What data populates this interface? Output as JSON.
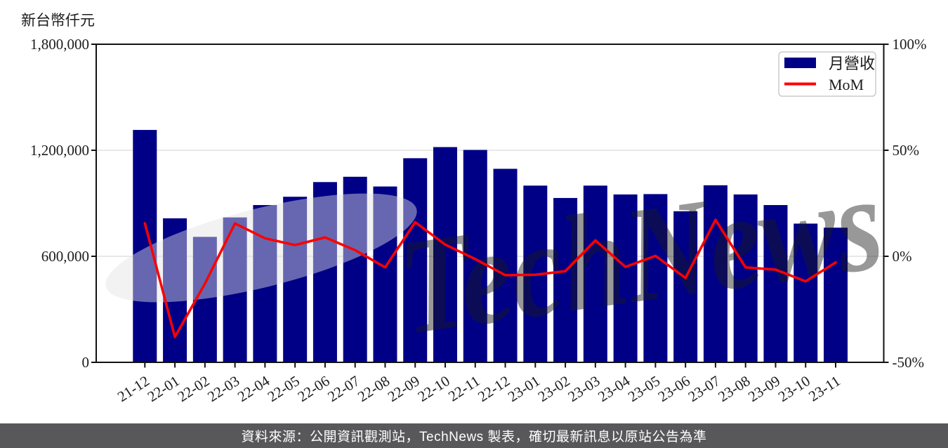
{
  "watermark": {
    "text": "TechNews",
    "pink": "#efbcbc",
    "gray": "#e4e4e4"
  },
  "legend": {
    "items": [
      {
        "label": "月營收",
        "type": "bar",
        "color": "#000087"
      },
      {
        "label": "MoM",
        "type": "line",
        "color": "#ff0000"
      }
    ]
  },
  "caption": {
    "text": "資料來源：公開資訊觀測站，TechNews 製表，確切最新訊息以原站公告為準",
    "background": "#58585a",
    "color": "#ffffff"
  },
  "chart_data": {
    "type": "bar",
    "title": "",
    "categories": [
      "21-12",
      "22-01",
      "22-02",
      "22-03",
      "22-04",
      "22-05",
      "22-06",
      "22-07",
      "22-08",
      "22-09",
      "22-10",
      "22-11",
      "22-12",
      "23-01",
      "23-02",
      "23-03",
      "23-04",
      "23-05",
      "23-06",
      "23-07",
      "23-08",
      "23-09",
      "23-10",
      "23-11"
    ],
    "series": [
      {
        "name": "月營收",
        "type": "bar",
        "axis": "left",
        "color": "#000087",
        "values": [
          1315000,
          815000,
          710000,
          820000,
          890000,
          937000,
          1020000,
          1050000,
          995000,
          1155000,
          1218000,
          1202000,
          1095000,
          1000000,
          930000,
          1000000,
          950000,
          952000,
          855000,
          1002000,
          950000,
          890000,
          785000,
          762000
        ]
      },
      {
        "name": "MoM",
        "type": "line",
        "axis": "right",
        "color": "#ff0000",
        "unit": "%",
        "values": [
          15.6,
          -38.0,
          -12.9,
          15.5,
          8.5,
          5.3,
          8.9,
          2.9,
          -5.2,
          16.1,
          5.5,
          -1.3,
          -8.9,
          -8.7,
          -7.0,
          7.5,
          -5.0,
          0.2,
          -10.2,
          17.2,
          -5.2,
          -6.3,
          -11.8,
          -2.9
        ]
      }
    ],
    "left_axis": {
      "label": "新台幣仟元",
      "min": 0,
      "max": 1800000,
      "ticks": [
        {
          "value": 0,
          "label": "0"
        },
        {
          "value": 600000,
          "label": "600,000"
        },
        {
          "value": 1200000,
          "label": "1,200,000"
        },
        {
          "value": 1800000,
          "label": "1,800,000"
        }
      ],
      "gridlines": [
        600000,
        1200000
      ]
    },
    "right_axis": {
      "min": -50,
      "max": 100,
      "ticks": [
        {
          "value": -50,
          "label": "-50%"
        },
        {
          "value": 0,
          "label": "0%"
        },
        {
          "value": 50,
          "label": "50%"
        },
        {
          "value": 100,
          "label": "100%"
        }
      ]
    },
    "legend_position": "top-right",
    "grid": "horizontal"
  }
}
